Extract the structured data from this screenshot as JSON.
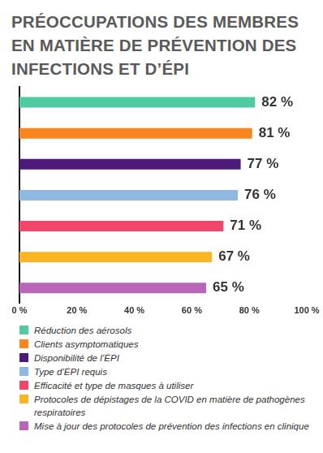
{
  "chart_data": {
    "type": "bar",
    "title": "PRÉOCCUPATIONS DES MEMBRES EN MATIÈRE DE PRÉVENTION DES INFECTIONS ET D’ÉPI",
    "orientation": "horizontal",
    "categories": [
      "Réduction des aérosols",
      "Clients asymptomatiques",
      "Disponibilité de l’ÉPI",
      "Type d’ÉPI requis",
      "Efficacité et type de masques à utiliser",
      "Protocoles de dépistages de la COVID en matière de pathogènes respiratoires",
      "Mise à jour des protocoles de prévention des infections en clinique"
    ],
    "values": [
      82,
      81,
      77,
      76,
      71,
      67,
      65
    ],
    "value_labels": [
      "82 %",
      "81 %",
      "77 %",
      "76 %",
      "71 %",
      "67 %",
      "65 %"
    ],
    "colors": [
      "#4ecba0",
      "#f7861e",
      "#4b1a7a",
      "#8fb8e2",
      "#f2456a",
      "#fbb424",
      "#b866b8"
    ],
    "xlim": [
      0,
      100
    ],
    "xticks": [
      {
        "value": 0,
        "label": "0 %"
      },
      {
        "value": 20,
        "label": "20 %"
      },
      {
        "value": 40,
        "label": "40 %"
      },
      {
        "value": 60,
        "label": "60 %"
      },
      {
        "value": 80,
        "label": "80 %"
      },
      {
        "value": 100,
        "label": "100 %"
      }
    ],
    "grid": false,
    "data_labels": true,
    "tick_labels": "x",
    "legend": "bottom"
  }
}
